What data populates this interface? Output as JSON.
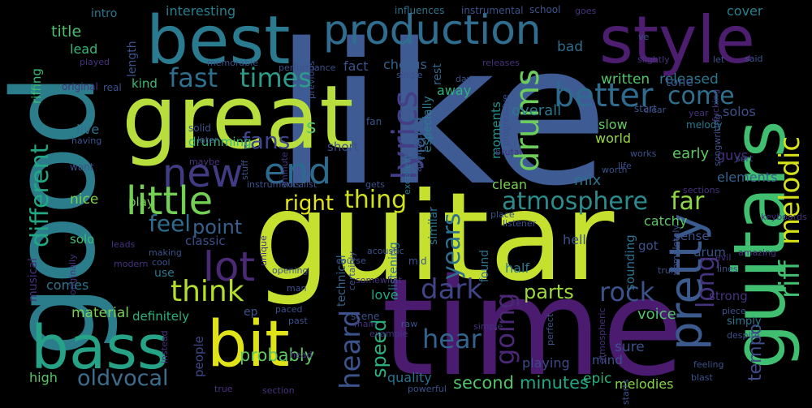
{
  "words": [
    {
      "text": "like",
      "color": "#3e5b94"
    },
    {
      "text": "guitar",
      "color": "#c6e02f"
    },
    {
      "text": "time",
      "color": "#4b1b70"
    },
    {
      "text": "good",
      "color": "#2b7d8c"
    },
    {
      "text": "great",
      "color": "#b8de3e"
    },
    {
      "text": "guitars",
      "color": "#3fbf6f"
    },
    {
      "text": "best",
      "color": "#2a7b8f"
    },
    {
      "text": "style",
      "color": "#4d1d6f"
    },
    {
      "text": "bass",
      "color": "#26a387"
    },
    {
      "text": "bit",
      "color": "#e0e318"
    },
    {
      "text": "production",
      "color": "#2f6e8e"
    },
    {
      "text": "pretty",
      "color": "#3b5a8d"
    },
    {
      "text": "lyrics",
      "color": "#433e85"
    },
    {
      "text": "new",
      "color": "#403b83"
    },
    {
      "text": "little",
      "color": "#74d055"
    },
    {
      "text": "end",
      "color": "#2c6b8e"
    },
    {
      "text": "lot",
      "color": "#4a2a76"
    },
    {
      "text": "better",
      "color": "#2f6b8e"
    },
    {
      "text": "drums",
      "color": "#6ccd5a"
    },
    {
      "text": "melodic",
      "color": "#d5e21a"
    },
    {
      "text": "riff",
      "color": "#43bf71"
    },
    {
      "text": "atmosphere",
      "color": "#2e8b8c"
    },
    {
      "text": "fast",
      "color": "#2e6f8e"
    },
    {
      "text": "times",
      "color": "#2e9b8a"
    },
    {
      "text": "come",
      "color": "#2f708e"
    },
    {
      "text": "different",
      "color": "#22a884"
    },
    {
      "text": "think",
      "color": "#b5de2b"
    },
    {
      "text": "heard",
      "color": "#3b528b"
    },
    {
      "text": "years",
      "color": "#2d708e"
    },
    {
      "text": "dark",
      "color": "#414487"
    },
    {
      "text": "rock",
      "color": "#3b528b"
    },
    {
      "text": "hear",
      "color": "#32648e"
    },
    {
      "text": "going",
      "color": "#4b2775"
    },
    {
      "text": "oldvocal",
      "color": "#3b6d8e"
    },
    {
      "text": "thing",
      "color": "#cfe11c"
    },
    {
      "text": "fans",
      "color": "#40448a"
    },
    {
      "text": "feel",
      "color": "#2f6c8e"
    },
    {
      "text": "far",
      "color": "#8ed645"
    },
    {
      "text": "right",
      "color": "#e3e419"
    },
    {
      "text": "point",
      "color": "#35608d"
    },
    {
      "text": "hard",
      "color": "#365d8d"
    },
    {
      "text": "long",
      "color": "#46337e"
    },
    {
      "text": "parts",
      "color": "#9bd93c"
    },
    {
      "text": "speed",
      "color": "#2ab07f"
    },
    {
      "text": "tempo",
      "color": "#3e4a89"
    },
    {
      "text": "second",
      "color": "#52c569"
    },
    {
      "text": "minutes",
      "color": "#22a785"
    },
    {
      "text": "probably",
      "color": "#5ec962"
    },
    {
      "text": "quality",
      "color": "#2c718e"
    },
    {
      "text": "written",
      "color": "#52c569"
    },
    {
      "text": "released",
      "color": "#2a788e"
    },
    {
      "text": "cover",
      "color": "#27808e"
    },
    {
      "text": "title",
      "color": "#4ac16d"
    },
    {
      "text": "intro",
      "color": "#29798e"
    },
    {
      "text": "interesting",
      "color": "#277f8e"
    },
    {
      "text": "lead",
      "color": "#32b67a"
    },
    {
      "text": "fact",
      "color": "#3b528b"
    },
    {
      "text": "chorus",
      "color": "#34618d"
    },
    {
      "text": "bad",
      "color": "#2e6e8e"
    },
    {
      "text": "length",
      "color": "#3b528b"
    },
    {
      "text": "riffing",
      "color": "#3bbb75"
    },
    {
      "text": "kind",
      "color": "#3fbc73"
    },
    {
      "text": "overall",
      "color": "#2a788e"
    },
    {
      "text": "tone",
      "color": "#3b528b"
    },
    {
      "text": "solos",
      "color": "#3b528b"
    },
    {
      "text": "away",
      "color": "#2db27d"
    },
    {
      "text": "rest",
      "color": "#31688e"
    },
    {
      "text": "especially",
      "color": "#287c8e"
    },
    {
      "text": "live",
      "color": "#2e6f8e"
    },
    {
      "text": "slow",
      "color": "#63cb5f"
    },
    {
      "text": "world",
      "color": "#98d83e"
    },
    {
      "text": "early",
      "color": "#5ec962"
    },
    {
      "text": "guys",
      "color": "#46307e"
    },
    {
      "text": "melody",
      "color": "#2a788e"
    },
    {
      "text": "short",
      "color": "#3e4c8a"
    },
    {
      "text": "drumming",
      "color": "#35b779"
    },
    {
      "text": "moments",
      "color": "#21918c"
    },
    {
      "text": "clean",
      "color": "#7ad151"
    },
    {
      "text": "mix",
      "color": "#2c738e"
    },
    {
      "text": "elements",
      "color": "#34618d"
    },
    {
      "text": "nice",
      "color": "#7ad151"
    },
    {
      "text": "play",
      "color": "#7ad151"
    },
    {
      "text": "catchy",
      "color": "#5ec962"
    },
    {
      "text": "sense",
      "color": "#3b528b"
    },
    {
      "text": "drum",
      "color": "#39558c"
    },
    {
      "text": "classic",
      "color": "#3d4d8a"
    },
    {
      "text": "hell",
      "color": "#3b528b"
    },
    {
      "text": "sounding",
      "color": "#2e6f8e"
    },
    {
      "text": "got",
      "color": "#3b528b"
    },
    {
      "text": "solo",
      "color": "#3fbc73"
    },
    {
      "text": "half",
      "color": "#2a788e"
    },
    {
      "text": "voice",
      "color": "#4ec36b"
    },
    {
      "text": "musical",
      "color": "#46327e"
    },
    {
      "text": "material",
      "color": "#7ad151"
    },
    {
      "text": "definitely",
      "color": "#2ab07f"
    },
    {
      "text": "comes",
      "color": "#2c738e"
    },
    {
      "text": "love",
      "color": "#21a685"
    },
    {
      "text": "high",
      "color": "#56c667"
    },
    {
      "text": "people",
      "color": "#404688"
    },
    {
      "text": "ep",
      "color": "#3b528b"
    },
    {
      "text": "sure",
      "color": "#3b528b"
    },
    {
      "text": "mind",
      "color": "#3b528b"
    },
    {
      "text": "playing",
      "color": "#3e4a89"
    },
    {
      "text": "melodies",
      "color": "#86d549"
    },
    {
      "text": "epic",
      "color": "#2db27d"
    },
    {
      "text": "technical",
      "color": "#33638d"
    },
    {
      "text": "listening",
      "color": "#2e6e8e"
    },
    {
      "text": "simply",
      "color": "#2a788e"
    },
    {
      "text": "strong",
      "color": "#46327e"
    },
    {
      "text": "found",
      "color": "#2d708e"
    },
    {
      "text": "similar",
      "color": "#2c728e"
    },
    {
      "text": "use",
      "color": "#2a788e"
    },
    {
      "text": "solid",
      "color": "#3b528b"
    },
    {
      "text": "later",
      "color": "#3b528b"
    },
    {
      "text": "fan",
      "color": "#3b528b"
    },
    {
      "text": "want",
      "color": "#3b528b"
    },
    {
      "text": "previous",
      "color": "#3b528b"
    },
    {
      "text": "influences",
      "color": "#2c728e"
    },
    {
      "text": "instrumental",
      "color": "#3b528b"
    },
    {
      "text": "school",
      "color": "#3b528b"
    },
    {
      "text": "goes",
      "color": "#46327e"
    },
    {
      "text": "memorable",
      "color": "#3b528b"
    },
    {
      "text": "performance",
      "color": "#3b528b"
    },
    {
      "text": "original",
      "color": "#46327e"
    },
    {
      "text": "real",
      "color": "#3b528b"
    },
    {
      "text": "played",
      "color": "#46327e"
    },
    {
      "text": "single",
      "color": "#3b528b"
    },
    {
      "text": "day",
      "color": "#3b528b"
    },
    {
      "text": "progressive",
      "color": "#3b528b"
    },
    {
      "text": "start",
      "color": "#3b528b"
    },
    {
      "text": "slightly",
      "color": "#46327e"
    },
    {
      "text": "let",
      "color": "#3b528b"
    },
    {
      "text": "said",
      "color": "#3b528b"
    },
    {
      "text": "fucking",
      "color": "#46327e"
    },
    {
      "text": "songwriting",
      "color": "#3b528b"
    },
    {
      "text": "sort",
      "color": "#3b528b"
    },
    {
      "text": "brutal",
      "color": "#46327e"
    },
    {
      "text": "works",
      "color": "#3b528b"
    },
    {
      "text": "life",
      "color": "#3b528b"
    },
    {
      "text": "worth",
      "color": "#3b528b"
    },
    {
      "text": "clear",
      "color": "#3b528b"
    },
    {
      "text": "keyboards",
      "color": "#46327e"
    },
    {
      "text": "having",
      "color": "#3b528b"
    },
    {
      "text": "maybe",
      "color": "#46327e"
    },
    {
      "text": "stuff",
      "color": "#3b528b"
    },
    {
      "text": "instruments",
      "color": "#3b528b"
    },
    {
      "text": "vocalist",
      "color": "#3b528b"
    },
    {
      "text": "approach",
      "color": "#3b528b"
    },
    {
      "text": "excellent",
      "color": "#2a788e"
    },
    {
      "text": "gets",
      "color": "#3b528b"
    },
    {
      "text": "place",
      "color": "#3b528b"
    },
    {
      "text": "listener",
      "color": "#3b528b"
    },
    {
      "text": "sections",
      "color": "#46327e"
    },
    {
      "text": "evil",
      "color": "#46327e"
    },
    {
      "text": "amazing",
      "color": "#46327e"
    },
    {
      "text": "lines",
      "color": "#3b528b"
    },
    {
      "text": "truly",
      "color": "#3b528b"
    },
    {
      "text": "completely",
      "color": "#3b528b"
    },
    {
      "text": "acoustic",
      "color": "#3b528b"
    },
    {
      "text": "course",
      "color": "#3b528b"
    },
    {
      "text": "certainly",
      "color": "#3b528b"
    },
    {
      "text": "mid",
      "color": "#3b528b"
    },
    {
      "text": "unique",
      "color": "#46327e"
    },
    {
      "text": "opening",
      "color": "#3b528b"
    },
    {
      "text": "man",
      "color": "#3b528b"
    },
    {
      "text": "cool",
      "color": "#3b528b"
    },
    {
      "text": "making",
      "color": "#3b528b"
    },
    {
      "text": "leads",
      "color": "#46327e"
    },
    {
      "text": "modern",
      "color": "#46327e"
    },
    {
      "text": "minute",
      "color": "#46327e"
    },
    {
      "text": "somewhat",
      "color": "#46327e"
    },
    {
      "text": "paced",
      "color": "#3b528b"
    },
    {
      "text": "past",
      "color": "#3b528b"
    },
    {
      "text": "scene",
      "color": "#3b528b"
    },
    {
      "text": "raw",
      "color": "#3b528b"
    },
    {
      "text": "example",
      "color": "#46327e"
    },
    {
      "text": "main",
      "color": "#46327e"
    },
    {
      "text": "simple",
      "color": "#46327e"
    },
    {
      "text": "piece",
      "color": "#3b528b"
    },
    {
      "text": "atmospheric",
      "color": "#46327e"
    },
    {
      "text": "perfect",
      "color": "#3b528b"
    },
    {
      "text": "despite",
      "color": "#3b528b"
    },
    {
      "text": "feeling",
      "color": "#3b528b"
    },
    {
      "text": "starts",
      "color": "#3b528b"
    },
    {
      "text": "blast",
      "color": "#3b528b"
    },
    {
      "text": "head",
      "color": "#46327e"
    },
    {
      "text": "true",
      "color": "#46327e"
    },
    {
      "text": "section",
      "color": "#46327e"
    },
    {
      "text": "powerful",
      "color": "#3b528b"
    },
    {
      "text": "instead",
      "color": "#46327e"
    },
    {
      "text": "originally",
      "color": "#46327e"
    },
    {
      "text": "year",
      "color": "#46327e"
    },
    {
      "text": "releases",
      "color": "#46327e"
    },
    {
      "text": "ve",
      "color": "#3b528b"
    },
    {
      "text": "s",
      "color": "#52c569"
    }
  ]
}
